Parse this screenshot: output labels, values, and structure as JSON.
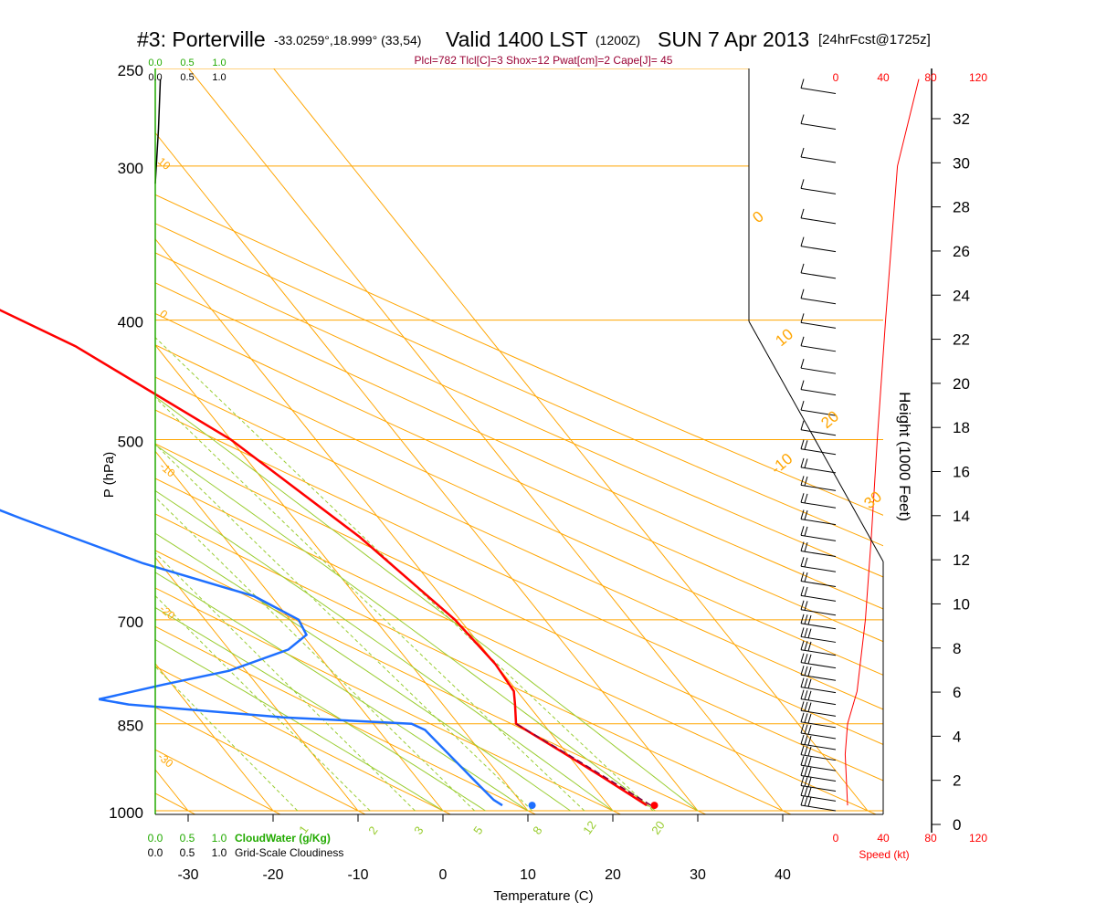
{
  "title": {
    "station": "#3: Porterville",
    "coords": "-33.0259°,18.999° (33,54)",
    "valid": "Valid 1400 LST",
    "zulu": "(1200Z)",
    "date": "SUN 7 Apr 2013",
    "forecast": "[24hrFcst@1725z]"
  },
  "subtitle": "Plcl=782 Tlcl[C]=3 Shox=12 Pwat[cm]=2 Cape[J]= 45",
  "colors": {
    "isobar": "#ffa500",
    "isotherm": "#ffa500",
    "dry_adiabat": "#ffa500",
    "moist_adiabat": "#9acd32",
    "mixing_ratio": "#9acd32",
    "temperature": "#ff0000",
    "dewpoint": "#1e6fff",
    "parcel": "#800040",
    "cloudwater": "#22aa00",
    "speed": "#ff0000",
    "height_axis": "#000000",
    "subtitle": "#990033"
  },
  "chart_data": {
    "type": "line",
    "xlabel": "Temperature (C)",
    "ylabel": "P (hPa)",
    "right_axis_label": "Height (1000 Feet)",
    "x_ticks": [
      "-30",
      "-20",
      "-10",
      "0",
      "10",
      "20",
      "30",
      "40"
    ],
    "p_ticks": [
      "250",
      "300",
      "400",
      "500",
      "700",
      "850",
      "1000"
    ],
    "height_ticks": [
      "0",
      "2",
      "4",
      "6",
      "8",
      "10",
      "12",
      "14",
      "16",
      "18",
      "20",
      "22",
      "24",
      "26",
      "28",
      "30",
      "32"
    ],
    "speed_ticks": [
      "0",
      "40",
      "80",
      "120"
    ],
    "speed_label": "Speed (kt)",
    "cloudwater_ticks": [
      "0.0",
      "0.5",
      "1.0"
    ],
    "cloudiness_ticks": [
      "0.0",
      "0.5",
      "1.0"
    ],
    "cloudwater_label": "CloudWater (g/Kg)",
    "cloudiness_label": "Grid-Scale Cloudiness",
    "isotherm_labels": [
      "-10",
      "0",
      "10",
      "20",
      "30"
    ],
    "dry_adiabat_labels": [
      "10",
      "0",
      "-10",
      "-20",
      "-30"
    ],
    "mixing_ratio_labels": [
      "1",
      "2",
      "3",
      "5",
      "8",
      "12",
      "20"
    ],
    "series": [
      {
        "name": "temperature",
        "points": [
          [
            24.5,
            990
          ],
          [
            22,
            940
          ],
          [
            19.5,
            895
          ],
          [
            17.5,
            862
          ],
          [
            16.8,
            850
          ],
          [
            18.5,
            820
          ],
          [
            19.6,
            800
          ],
          [
            20.0,
            760
          ],
          [
            19.4,
            700
          ],
          [
            16.0,
            600
          ],
          [
            10.0,
            500
          ],
          [
            0.5,
            420
          ],
          [
            -12,
            360
          ],
          [
            -30,
            300
          ],
          [
            -42,
            255
          ]
        ]
      },
      {
        "name": "dewpoint",
        "points": [
          [
            7.5,
            990
          ],
          [
            7.0,
            980
          ],
          [
            6.5,
            940
          ],
          [
            5.5,
            860
          ],
          [
            4.5,
            850
          ],
          [
            -10,
            840
          ],
          [
            -27,
            820
          ],
          [
            -30,
            812
          ],
          [
            -21,
            790
          ],
          [
            -12,
            770
          ],
          [
            -3,
            740
          ],
          [
            0.5,
            720
          ],
          [
            1.0,
            700
          ],
          [
            -2,
            670
          ],
          [
            -12,
            630
          ],
          [
            -22,
            580
          ],
          [
            -30,
            540
          ],
          [
            -40,
            480
          ],
          [
            -52,
            420
          ],
          [
            -58,
            400
          ],
          [
            -55,
            370
          ],
          [
            -50,
            350
          ],
          [
            -53,
            330
          ],
          [
            -60,
            310
          ],
          [
            -75,
            255
          ]
        ]
      },
      {
        "name": "parcel",
        "points": [
          [
            25,
            990
          ],
          [
            20,
            900
          ],
          [
            16.8,
            850
          ]
        ]
      }
    ],
    "surface_temperature": 25.4,
    "surface_dewpoint": 11,
    "surface_pressure": 990,
    "cloudiness": [
      [
        0.08,
        255
      ],
      [
        0.05,
        280
      ],
      [
        0.0,
        310
      ]
    ],
    "wind_speed_kt": [
      [
        10,
        990
      ],
      [
        8,
        900
      ],
      [
        10,
        850
      ],
      [
        18,
        800
      ],
      [
        25,
        700
      ],
      [
        30,
        600
      ],
      [
        35,
        500
      ],
      [
        42,
        400
      ],
      [
        52,
        300
      ],
      [
        70,
        255
      ]
    ],
    "terrain_height_kft": [
      [
        0.0,
        990
      ]
    ]
  }
}
